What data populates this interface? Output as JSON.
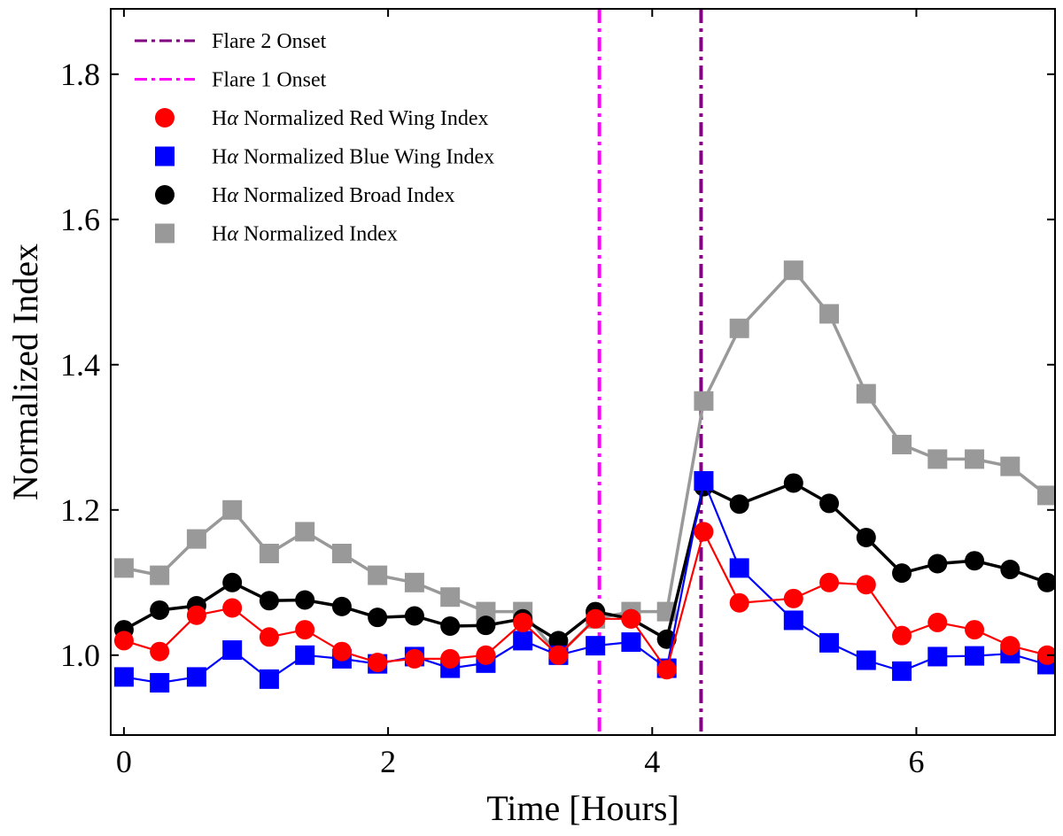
{
  "chart_data": {
    "type": "line",
    "title": "",
    "xlabel": "Time [Hours]",
    "ylabel": "Normalized Index",
    "xlim": [
      -0.1,
      7.05
    ],
    "ylim": [
      0.89,
      1.89
    ],
    "xticks": [
      0,
      2,
      4,
      6
    ],
    "xtick_labels": [
      "0",
      "2",
      "4",
      "6"
    ],
    "yticks": [
      1.0,
      1.2,
      1.4,
      1.6,
      1.8
    ],
    "ytick_labels": [
      "1.0",
      "1.2",
      "1.4",
      "1.6",
      "1.8"
    ],
    "legend_position": "top-left",
    "grid": false,
    "vlines": [
      {
        "name": "Flare 2 Onset",
        "x": 4.37,
        "color": "#800080",
        "style": "dashdot"
      },
      {
        "name": "Flare 1 Onset",
        "x": 3.6,
        "color": "#ff00ff",
        "style": "dashdot"
      }
    ],
    "x": [
      0.0,
      0.27,
      0.55,
      0.82,
      1.1,
      1.37,
      1.65,
      1.92,
      2.2,
      2.47,
      2.74,
      3.02,
      3.29,
      3.57,
      3.84,
      4.11,
      4.39,
      4.66,
      5.07,
      5.34,
      5.62,
      5.89,
      6.16,
      6.44,
      6.71,
      6.99
    ],
    "series": [
      {
        "name": "Hα Normalized Red Wing Index",
        "label_prefix": "H",
        "label_symbol": "α",
        "label_suffix": " Normalized Red Wing Index",
        "color": "#ff0000",
        "marker": "circle",
        "values": [
          1.02,
          1.005,
          1.055,
          1.065,
          1.025,
          1.035,
          1.005,
          0.99,
          0.995,
          0.995,
          1.0,
          1.045,
          1.0,
          1.05,
          1.05,
          0.98,
          1.17,
          1.072,
          1.078,
          1.1,
          1.097,
          1.027,
          1.045,
          1.035,
          1.013,
          1.0
        ]
      },
      {
        "name": "Hα Normalized Blue Wing Index",
        "label_prefix": "H",
        "label_symbol": "α",
        "label_suffix": " Normalized Blue Wing Index",
        "color": "#0000ff",
        "marker": "square",
        "values": [
          0.97,
          0.962,
          0.97,
          1.007,
          0.967,
          1.0,
          0.995,
          0.988,
          0.998,
          0.982,
          0.989,
          1.02,
          1.0,
          1.013,
          1.018,
          0.982,
          1.24,
          1.12,
          1.048,
          1.017,
          0.993,
          0.978,
          0.998,
          0.999,
          1.002,
          0.987
        ]
      },
      {
        "name": "Hα Normalized Broad Index",
        "label_prefix": "H",
        "label_symbol": "α",
        "label_suffix": " Normalized Broad Index",
        "color": "#000000",
        "marker": "circle",
        "values": [
          1.035,
          1.062,
          1.068,
          1.1,
          1.075,
          1.076,
          1.067,
          1.052,
          1.054,
          1.04,
          1.041,
          1.05,
          1.02,
          1.06,
          1.05,
          1.022,
          1.232,
          1.208,
          1.237,
          1.209,
          1.162,
          1.113,
          1.126,
          1.13,
          1.118,
          1.1
        ]
      },
      {
        "name": "Hα Normalized Index",
        "label_prefix": "H",
        "label_symbol": "α",
        "label_suffix": " Normalized Index",
        "color": "#999999",
        "marker": "square",
        "values": [
          1.12,
          1.11,
          1.16,
          1.2,
          1.14,
          1.17,
          1.14,
          1.11,
          1.1,
          1.08,
          1.06,
          1.06,
          1.0,
          1.05,
          1.06,
          1.06,
          1.35,
          1.45,
          1.53,
          1.47,
          1.36,
          1.29,
          1.27,
          1.27,
          1.26,
          1.22
        ]
      }
    ]
  }
}
